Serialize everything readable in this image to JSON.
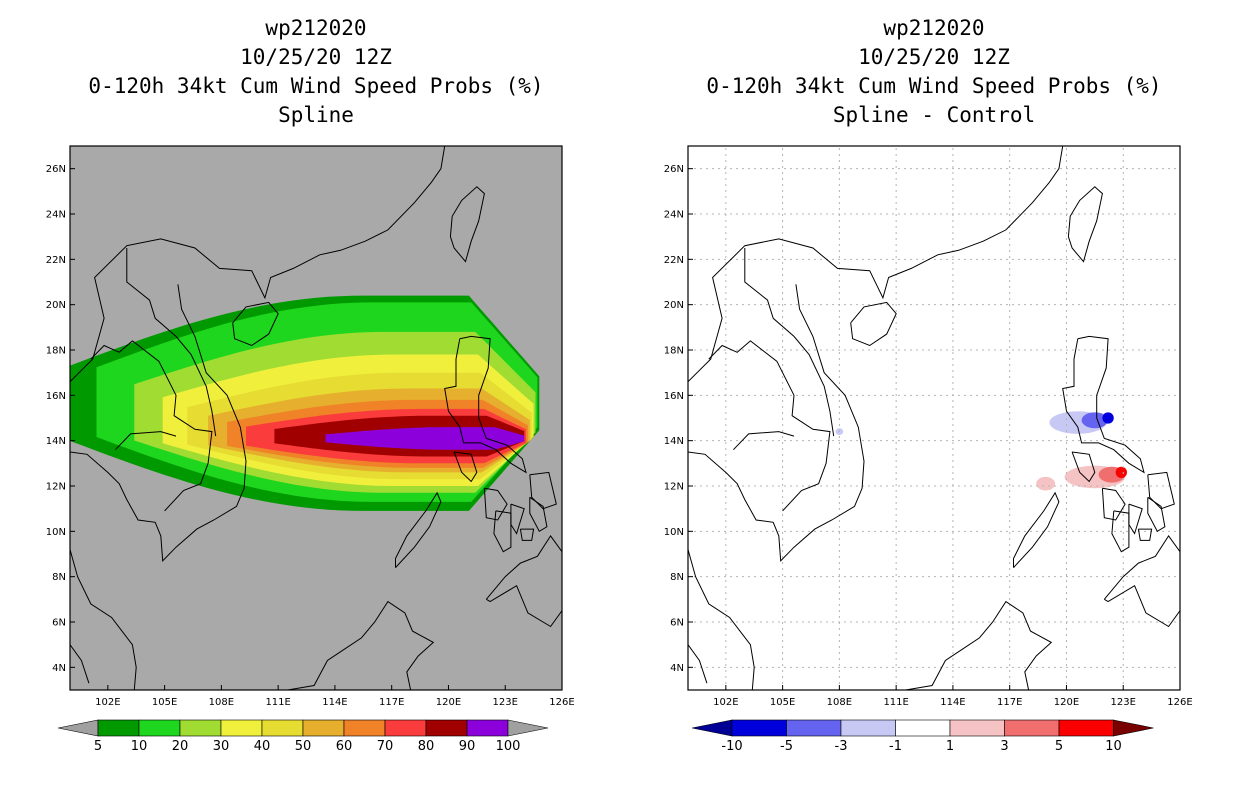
{
  "chart_data": [
    {
      "type": "heatmap",
      "title_lines": [
        "wp212020",
        "10/25/20 12Z",
        "0-120h 34kt Cum Wind Speed Probs (%)",
        "Spline"
      ],
      "x_ticks": [
        "102E",
        "105E",
        "108E",
        "111E",
        "114E",
        "117E",
        "120E",
        "123E",
        "126E"
      ],
      "y_ticks": [
        "26N",
        "24N",
        "22N",
        "20N",
        "18N",
        "16N",
        "14N",
        "12N",
        "10N",
        "8N",
        "6N",
        "4N"
      ],
      "xlim": [
        100,
        126
      ],
      "ylim": [
        3,
        27
      ],
      "background": "#a9a9a9",
      "grid": false,
      "colorbar": {
        "labels": [
          "5",
          "10",
          "20",
          "30",
          "40",
          "50",
          "60",
          "70",
          "80",
          "90",
          "100"
        ],
        "colors": [
          "#009a00",
          "#1ed61e",
          "#a0dc32",
          "#f0f03c",
          "#e6dc32",
          "#e6af2d",
          "#f08228",
          "#fa3c3c",
          "#a00000",
          "#8c00dc"
        ],
        "under_color": "#a0a0a0",
        "over_color": "#a0a0a0"
      },
      "contours": [
        {
          "level": 5,
          "color": "#009a00",
          "bounds": [
            100,
            124.8,
            10.9,
            20.4
          ]
        },
        {
          "level": 10,
          "color": "#1ed61e",
          "bounds": [
            101.4,
            124.7,
            11.3,
            20.1
          ]
        },
        {
          "level": 20,
          "color": "#a0dc32",
          "bounds": [
            103.4,
            124.6,
            11.7,
            18.8
          ]
        },
        {
          "level": 30,
          "color": "#f0f03c",
          "bounds": [
            104.9,
            124.5,
            12.0,
            17.8
          ]
        },
        {
          "level": 40,
          "color": "#e6dc32",
          "bounds": [
            106.2,
            124.4,
            12.3,
            17.0
          ]
        },
        {
          "level": 50,
          "color": "#e6af2d",
          "bounds": [
            107.3,
            124.3,
            12.6,
            16.3
          ]
        },
        {
          "level": 60,
          "color": "#f08228",
          "bounds": [
            108.3,
            124.2,
            12.8,
            15.8
          ]
        },
        {
          "level": 70,
          "color": "#fa3c3c",
          "bounds": [
            109.3,
            124.1,
            13.0,
            15.4
          ]
        },
        {
          "level": 80,
          "color": "#a00000",
          "bounds": [
            110.8,
            124.0,
            13.3,
            15.1
          ]
        },
        {
          "level": 90,
          "color": "#8c00dc",
          "bounds": [
            113.5,
            124.0,
            13.6,
            14.6
          ]
        }
      ]
    },
    {
      "type": "heatmap",
      "title_lines": [
        "wp212020",
        "10/25/20 12Z",
        "0-120h 34kt Cum Wind Speed Probs (%)",
        "Spline - Control"
      ],
      "x_ticks": [
        "102E",
        "105E",
        "108E",
        "111E",
        "114E",
        "117E",
        "120E",
        "123E",
        "126E"
      ],
      "y_ticks": [
        "26N",
        "24N",
        "22N",
        "20N",
        "18N",
        "16N",
        "14N",
        "12N",
        "10N",
        "8N",
        "6N",
        "4N"
      ],
      "xlim": [
        100,
        126
      ],
      "ylim": [
        3,
        27
      ],
      "background": "#ffffff",
      "grid": true,
      "colorbar": {
        "labels": [
          "-10",
          "-5",
          "-3",
          "-1",
          "1",
          "3",
          "5",
          "10"
        ],
        "colors": [
          "#0000dc",
          "#6464f0",
          "#c8c8f5",
          "#ffffff",
          "#f5c3c3",
          "#f06e6e",
          "#fa0000"
        ],
        "under_color": "#000096",
        "over_color": "#780000"
      },
      "anomalies": [
        {
          "value": -3,
          "color": "#c8c8f5",
          "lon": 120.6,
          "lat": 14.8,
          "rlon": 1.5,
          "rlat": 0.5
        },
        {
          "value": -5,
          "color": "#6464f0",
          "lon": 121.5,
          "lat": 14.9,
          "rlon": 0.7,
          "rlat": 0.35
        },
        {
          "value": -10,
          "color": "#0000dc",
          "lon": 122.2,
          "lat": 15.0,
          "rlon": 0.3,
          "rlat": 0.25
        },
        {
          "value": -1,
          "color": "#c8c8f5",
          "lon": 108.0,
          "lat": 14.4,
          "rlon": 0.2,
          "rlat": 0.15
        },
        {
          "value": 1,
          "color": "#f5c3c3",
          "lon": 121.5,
          "lat": 12.4,
          "rlon": 1.6,
          "rlat": 0.5
        },
        {
          "value": 1,
          "color": "#f5c3c3",
          "lon": 118.9,
          "lat": 12.1,
          "rlon": 0.5,
          "rlat": 0.3
        },
        {
          "value": 3,
          "color": "#f06e6e",
          "lon": 122.4,
          "lat": 12.5,
          "rlon": 0.7,
          "rlat": 0.35
        },
        {
          "value": 5,
          "color": "#fa0000",
          "lon": 122.9,
          "lat": 12.6,
          "rlon": 0.3,
          "rlat": 0.25
        }
      ]
    }
  ]
}
